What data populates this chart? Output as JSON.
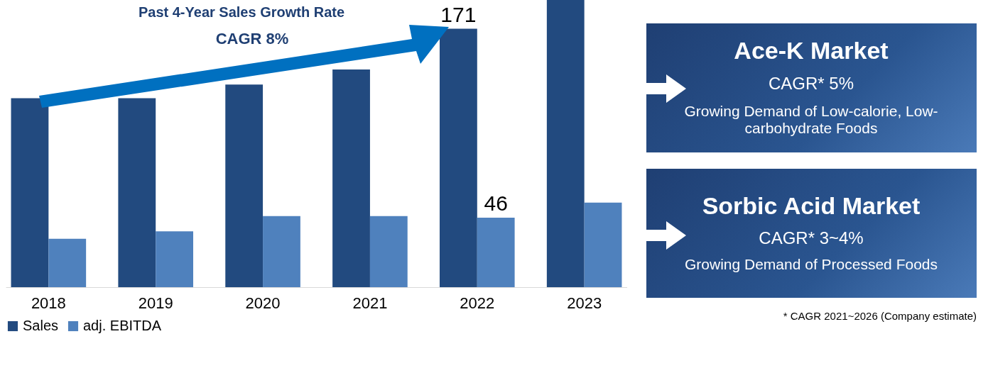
{
  "chart_data": {
    "type": "bar",
    "categories": [
      "2018",
      "2019",
      "2020",
      "2021",
      "2022",
      "2023"
    ],
    "series": [
      {
        "name": "Sales",
        "color": "#224a7f",
        "values": [
          125,
          125,
          134,
          144,
          171,
          190
        ],
        "value_labels": [
          null,
          null,
          null,
          null,
          "171",
          null
        ]
      },
      {
        "name": "adj. EBITDA",
        "color": "#4f81bd",
        "values": [
          32,
          37,
          47,
          47,
          46,
          56
        ],
        "value_labels": [
          null,
          null,
          null,
          null,
          "46",
          null
        ]
      }
    ],
    "tick_labels": "x",
    "legend": "bottom",
    "annotations": [
      "Past 4-Year Sales Growth Rate",
      "CAGR 8%",
      "Ace-K Market",
      "CAGR* 5%",
      "Growing Demand of Low-calorie, Low-carbohydrate Foods",
      "Sorbic Acid Market",
      "CAGR* 3~4%",
      "Growing Demand of Processed Foods",
      "* CAGR  2021~2026 (Company estimate)"
    ]
  }
}
